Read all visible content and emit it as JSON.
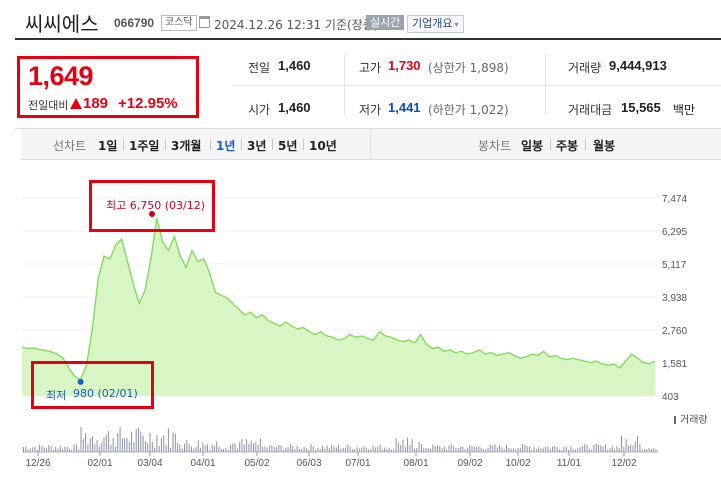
{
  "header": {
    "stock_name": "씨씨에스",
    "stock_code": "066790",
    "market": "코스닥",
    "datetime": "2024.12.26 12:31 기준(장중)",
    "realtime": "실시간",
    "company_overview": "기업개요",
    "dropdown_arrow": "▾"
  },
  "price": {
    "current": "1,649",
    "change_label": "전일대비",
    "change_value": "189",
    "change_pct": "+12.95%",
    "up_color": "#e60012",
    "down_color": "#0050c8"
  },
  "quote": {
    "prev_close_label": "전일",
    "prev_close": "1,460",
    "high_label": "고가",
    "high": "1,730",
    "upper_limit": "(상한가 1,898)",
    "volume_label": "거래량",
    "volume": "9,444,913",
    "open_label": "시가",
    "open": "1,460",
    "low_label": "저가",
    "low": "1,441",
    "lower_limit": "(하한가 1,022)",
    "amount_label": "거래대금",
    "amount": "15,565",
    "amount_unit": "백만"
  },
  "tabs": {
    "line_chart_label": "선차트",
    "periods": [
      "1일",
      "1주일",
      "3개월",
      "1년",
      "3년",
      "5년",
      "10년"
    ],
    "active_period": "1년",
    "candle_chart_label": "봉차트",
    "candle_periods": [
      "일봉",
      "주봉",
      "월봉"
    ]
  },
  "annotations": {
    "max_text": "최고 6,750 (03/12)",
    "min_label": "최저",
    "min_value": "980 (02/01)"
  },
  "chart_data": {
    "type": "area",
    "y_ticks": [
      "7,474",
      "6,295",
      "5,117",
      "3,938",
      "2,760",
      "1,581",
      "403"
    ],
    "ylim": [
      403,
      7474
    ],
    "x_ticks": [
      "12/26",
      "02/01",
      "03/04",
      "04/01",
      "05/02",
      "06/03",
      "07/01",
      "08/01",
      "09/02",
      "10/02",
      "11/01",
      "12/02"
    ],
    "volume_label": "거래량",
    "line_color": "#7ed957",
    "fill_color": "#d8f5c4",
    "series": [
      {
        "values": [
          2150,
          2100,
          2120,
          2060,
          2030,
          1980,
          1900,
          1750,
          1400,
          1100,
          980,
          1500,
          2800,
          4600,
          5400,
          5300,
          5800,
          6000,
          5200,
          4400,
          3700,
          4200,
          5300,
          6750,
          5900,
          5600,
          6100,
          5400,
          5000,
          5600,
          5200,
          5300,
          4800,
          4100,
          4000,
          3900,
          3700,
          3500,
          3300,
          3400,
          3200,
          3300,
          3100,
          3000,
          2900,
          3050,
          2900,
          2800,
          2850,
          2700,
          2600,
          2700,
          2550,
          2500,
          2400,
          2450,
          2600,
          2500,
          2550,
          2450,
          2400,
          2700,
          2550,
          2500,
          2400,
          2350,
          2400,
          2300,
          2600,
          2250,
          2100,
          2150,
          2000,
          2050,
          1950,
          2000,
          1900,
          1950,
          2050,
          1900,
          1950,
          1850,
          1900,
          1950,
          1850,
          1750,
          1800,
          1900,
          1850,
          2000,
          1800,
          1850,
          1750,
          1700,
          1750,
          1700,
          1650,
          1600,
          1650,
          1550,
          1500,
          1550,
          1400,
          1650,
          1900,
          1750,
          1600,
          1550,
          1649
        ]
      }
    ],
    "max": {
      "value": 6750,
      "date": "03/12"
    },
    "min": {
      "value": 980,
      "date": "02/01"
    }
  }
}
